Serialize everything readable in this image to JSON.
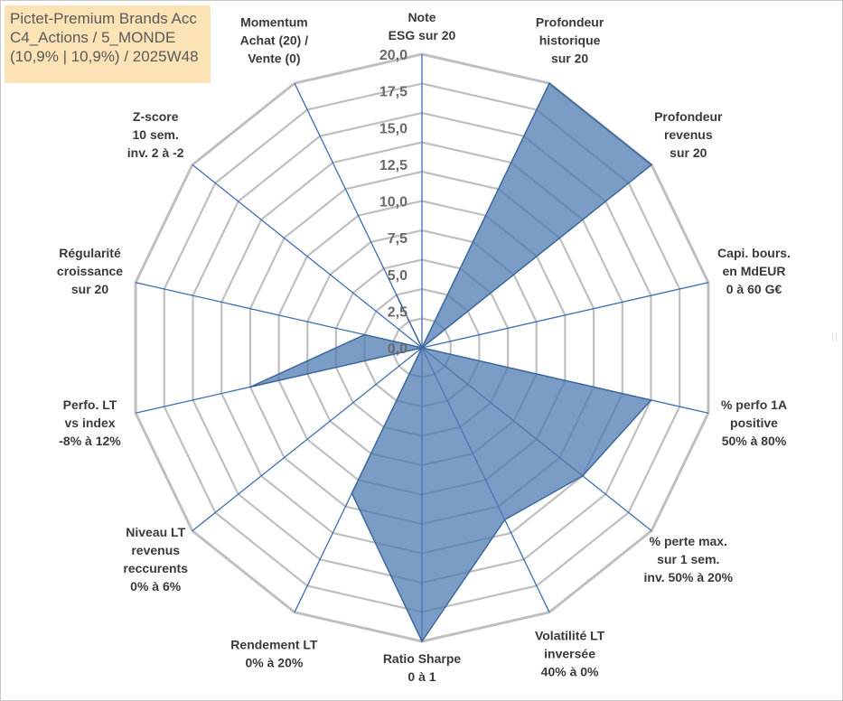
{
  "title_box": {
    "line1": "Pictet-Premium Brands Acc",
    "line2": "C4_Actions / 5_MONDE",
    "line3": "(10,9% | 10,9%) / 2025W48"
  },
  "colors": {
    "fill": "#4f7bb0",
    "stroke": "#3f6aa0",
    "grid": "#bfbfbf",
    "spoke": "#3e6db5",
    "title_bg": "#fbe3b5"
  },
  "chart_data": {
    "type": "radar",
    "rlim": [
      0,
      20
    ],
    "r_ticks": [
      "0,0",
      "2,5",
      "5,0",
      "7,5",
      "10,0",
      "12,5",
      "15,0",
      "17,5",
      "20,0"
    ],
    "grid": true,
    "axes": [
      [
        "Note",
        "ESG sur 20"
      ],
      [
        "Profondeur",
        "historique",
        "sur 20"
      ],
      [
        "Profondeur",
        "revenus",
        "sur 20"
      ],
      [
        "Capi. bours.",
        "en MdEUR",
        "0 à 60 G€"
      ],
      [
        "% perfo 1A",
        "positive",
        "50% à 80%"
      ],
      [
        "% perte max.",
        "sur 1 sem.",
        "inv. 50% à 20%"
      ],
      [
        "Volatilité LT",
        "inversée",
        "40% à 0%"
      ],
      [
        "Ratio Sharpe",
        "0 à 1"
      ],
      [
        "Rendement LT",
        "0% à 20%"
      ],
      [
        "Niveau LT",
        "revenus",
        "reccurents",
        "0% à 6%"
      ],
      [
        "Perfo. LT",
        "vs index",
        "-8% à 12%"
      ],
      [
        "Régularité",
        "croissance",
        "sur 20"
      ],
      [
        "Z-score",
        "10 sem.",
        "inv. 2 à -2"
      ],
      [
        "Momentum",
        "Achat (20) /",
        "Vente (0)"
      ]
    ],
    "series": [
      {
        "values": [
          0,
          20,
          20,
          0,
          16,
          14,
          13,
          20,
          11,
          0,
          12,
          4,
          0,
          4
        ]
      }
    ]
  }
}
